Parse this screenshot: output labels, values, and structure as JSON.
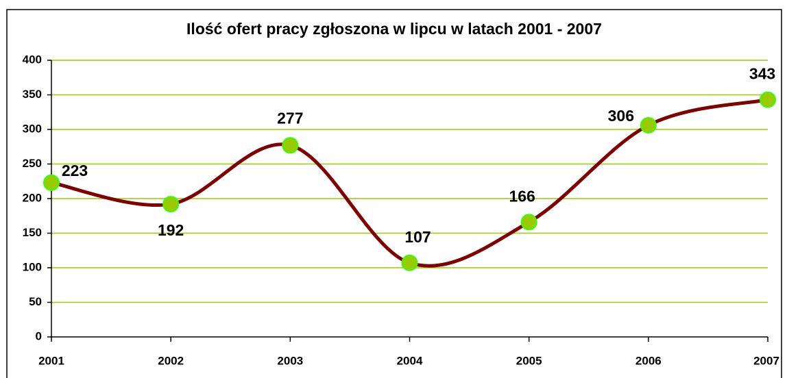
{
  "chart_data": {
    "type": "line",
    "title": "Ilość ofert pracy zgłoszona w lipcu w latach 2001 - 2007",
    "categories": [
      "2001",
      "2002",
      "2003",
      "2004",
      "2005",
      "2006",
      "2007"
    ],
    "values": [
      223,
      192,
      277,
      107,
      166,
      306,
      343
    ],
    "color": "#800000",
    "marker_color": "#99cc00",
    "marker_edge": "#33ff00",
    "grid_color": "#99cc00",
    "ylim": [
      0,
      400
    ],
    "yticks": [
      0,
      50,
      100,
      150,
      200,
      250,
      300,
      350,
      400
    ],
    "grid": true,
    "smooth": true
  }
}
